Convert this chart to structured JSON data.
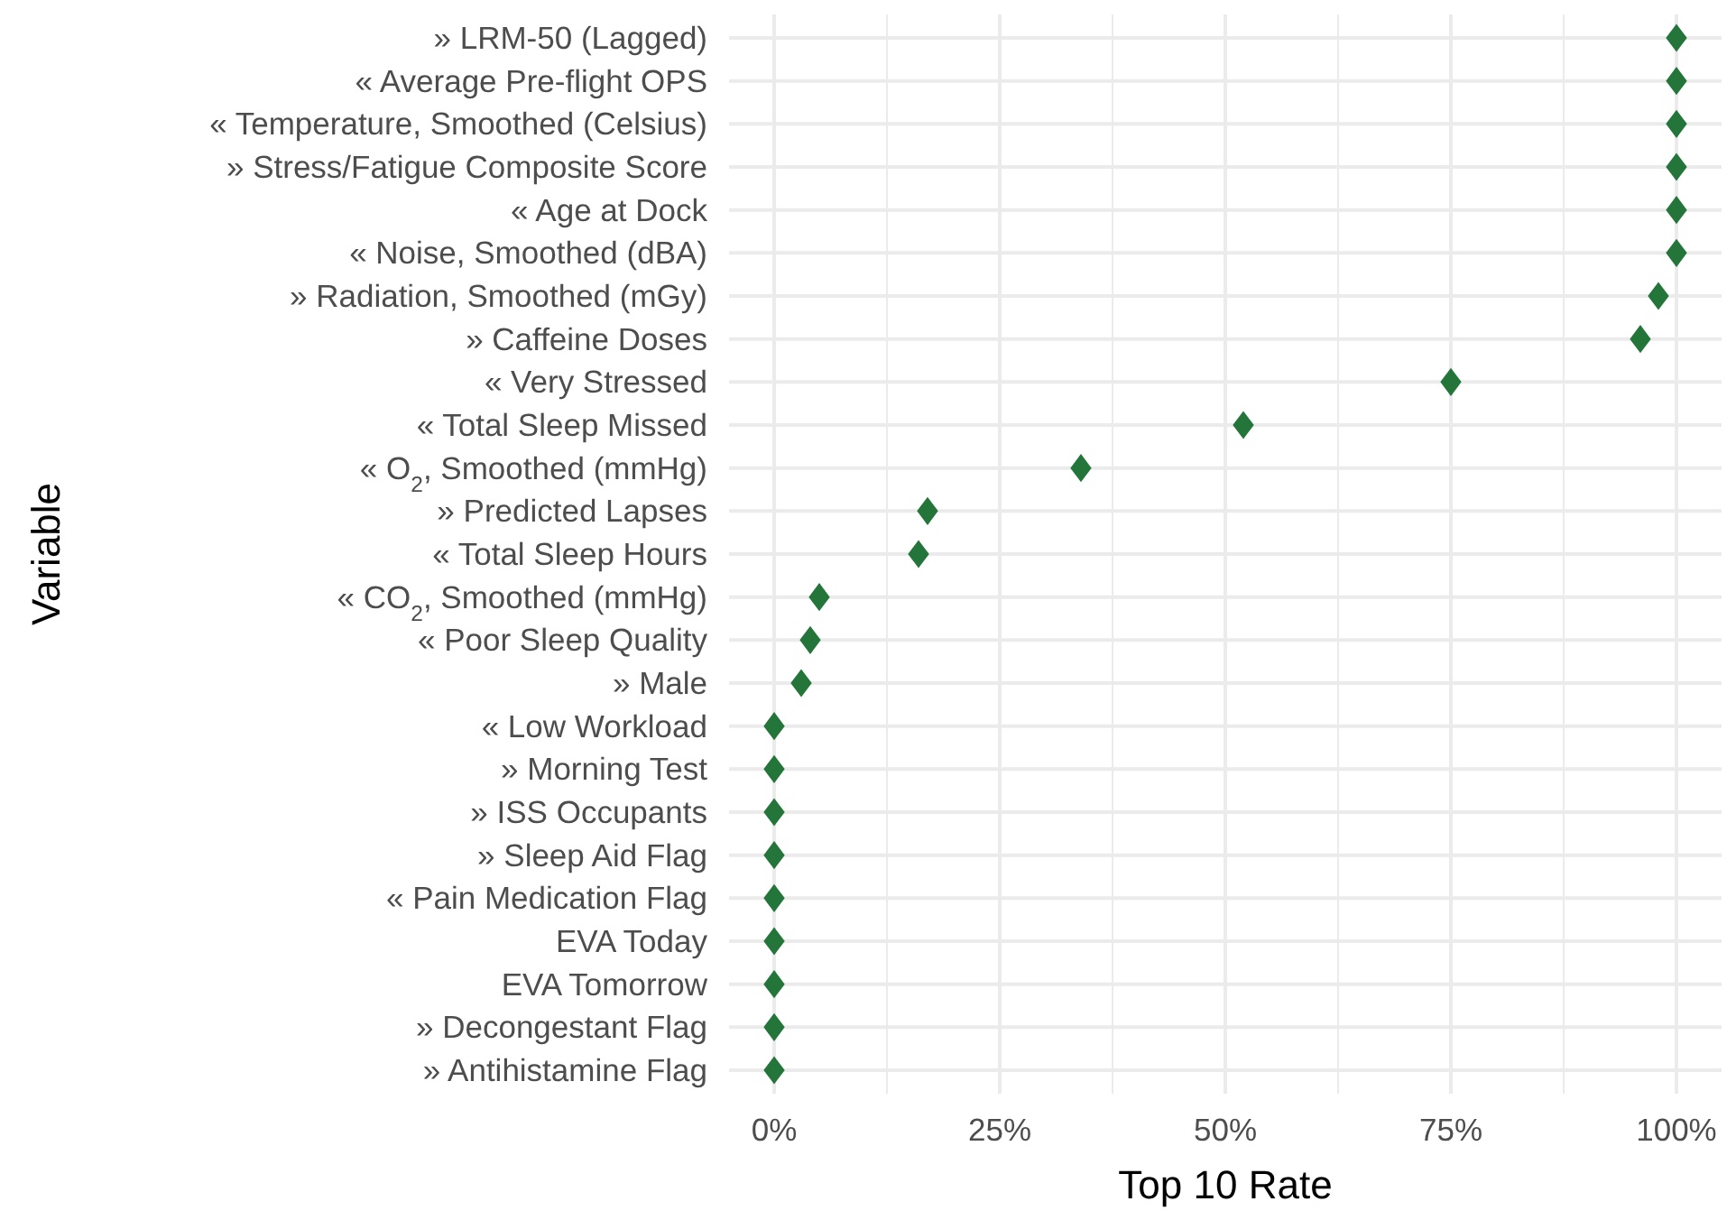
{
  "chart_data": {
    "type": "scatter",
    "xlabel": "Top 10 Rate",
    "ylabel": "Variable",
    "orientation": "horizontal",
    "categories": [
      "» LRM-50 (Lagged)",
      "« Average Pre-flight OPS",
      "« Temperature, Smoothed (Celsius)",
      "» Stress/Fatigue Composite Score",
      "« Age at Dock",
      "« Noise, Smoothed (dBA)",
      "» Radiation, Smoothed (mGy)",
      "» Caffeine Doses",
      "« Very Stressed",
      "« Total Sleep Missed",
      "« O$_{2}$, Smoothed (mmHg)",
      "» Predicted Lapses",
      "« Total Sleep Hours",
      "« CO$_{2}$, Smoothed (mmHg)",
      "« Poor Sleep Quality",
      "» Male",
      "« Low Workload",
      "» Morning Test",
      "» ISS Occupants",
      "» Sleep Aid Flag",
      "« Pain Medication Flag",
      "EVA Today",
      "EVA Tomorrow",
      "» Decongestant Flag",
      "» Antihistamine Flag"
    ],
    "series": [
      {
        "color": "#23753a",
        "values": [
          100,
          100,
          100,
          100,
          100,
          100,
          98,
          96,
          75,
          52,
          34,
          17,
          16,
          5,
          4,
          3,
          0,
          0,
          0,
          0,
          0,
          0,
          0,
          0,
          0
        ]
      }
    ],
    "xlim": [
      -5,
      105
    ],
    "xticks": [
      {
        "value": 0,
        "label": "0%"
      },
      {
        "value": 25,
        "label": "25%"
      },
      {
        "value": 50,
        "label": "50%"
      },
      {
        "value": 75,
        "label": "75%"
      },
      {
        "value": 100,
        "label": "100%"
      }
    ],
    "grid": true,
    "marker": "diamond"
  }
}
